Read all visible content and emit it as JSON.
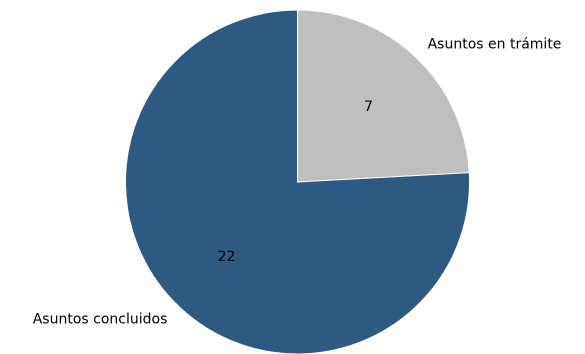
{
  "chart_data": {
    "type": "pie",
    "title": "",
    "slices": [
      {
        "label": "Asuntos en trámite",
        "value": 7,
        "value_label": "7",
        "color": "#bfbfbf"
      },
      {
        "label": "Asuntos concluidos",
        "value": 22,
        "value_label": "22",
        "color": "#2e5a82"
      }
    ],
    "start_angle": "12 o'clock",
    "direction": "clockwise",
    "legend": "none"
  }
}
